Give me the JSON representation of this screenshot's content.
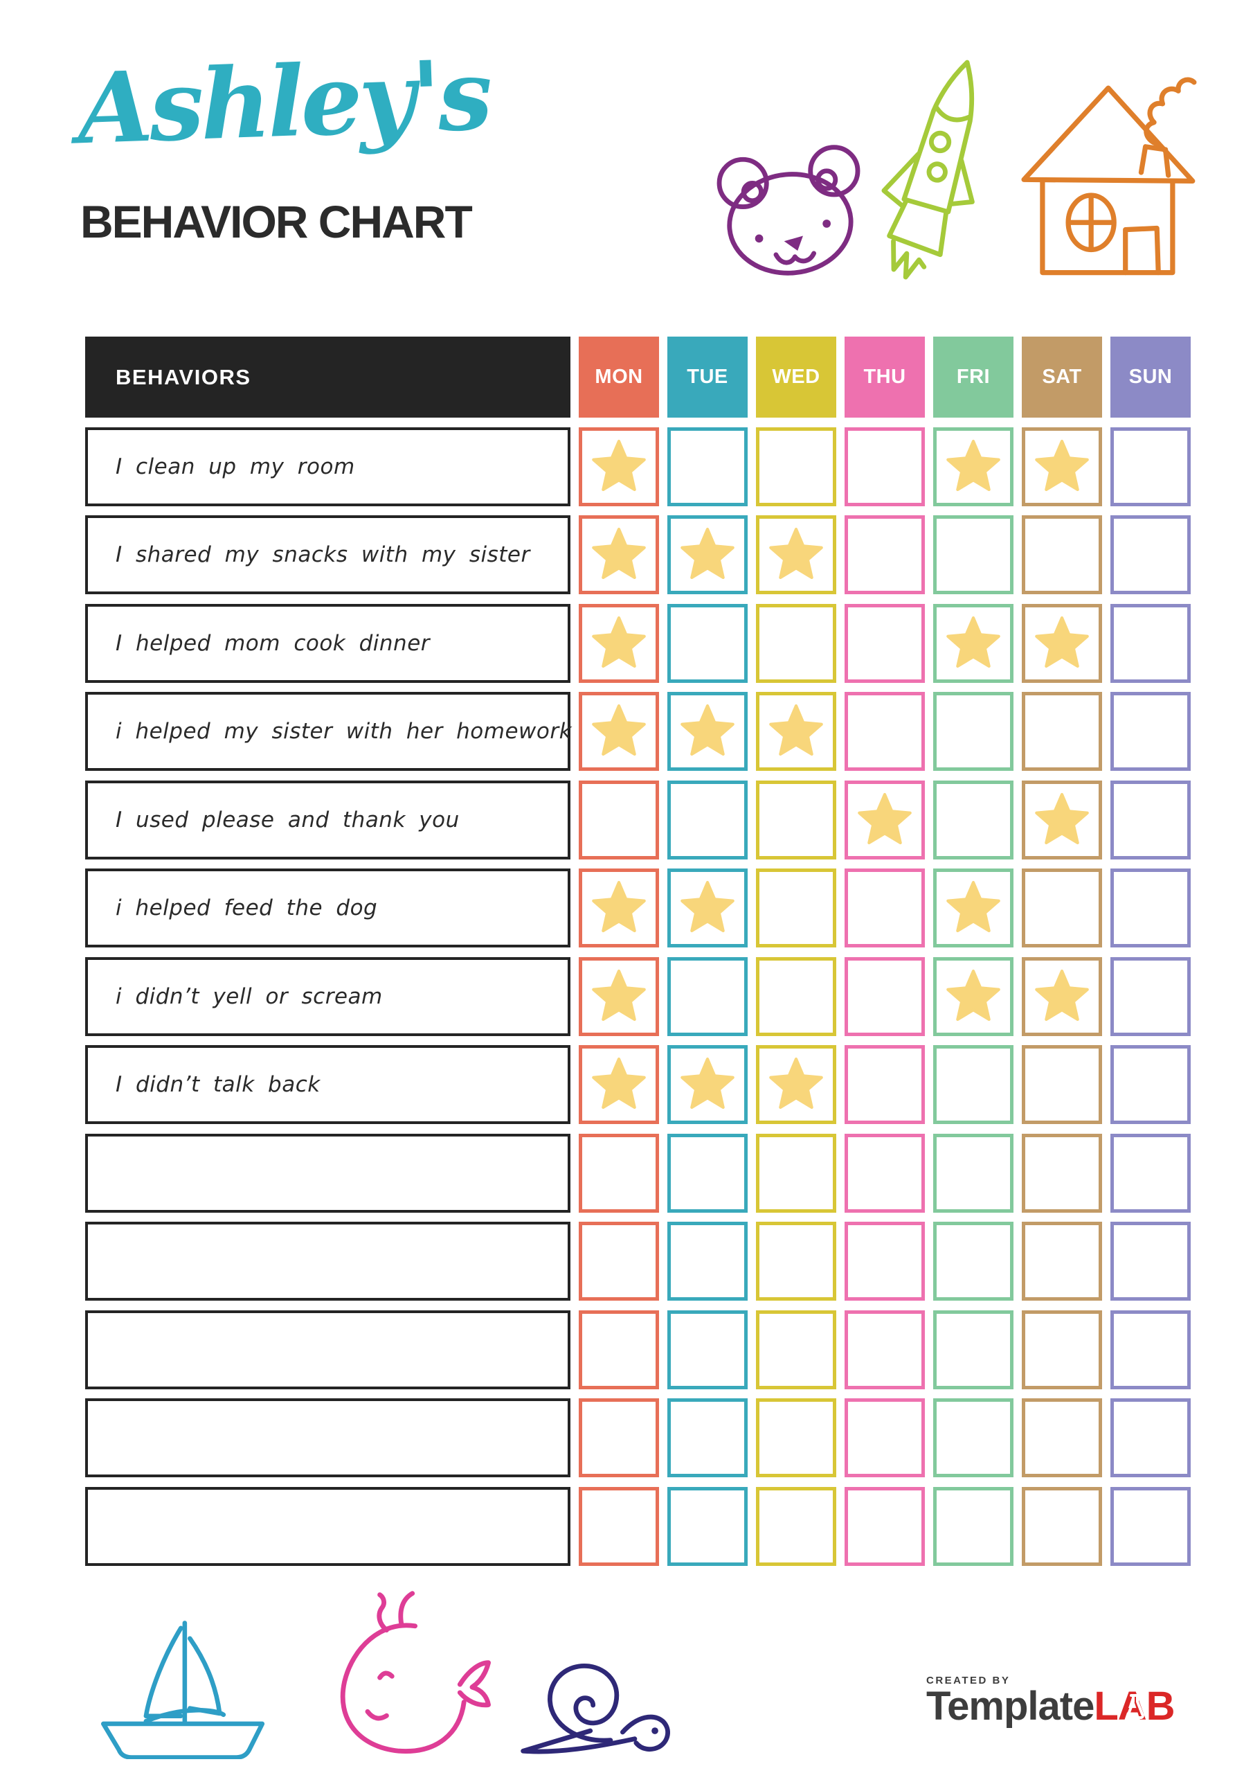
{
  "title": {
    "script": "Ashley's",
    "heading": "BEHAVIOR CHART",
    "script_color": "#2FAEC1",
    "heading_color": "#2b2b2b"
  },
  "table": {
    "behaviors_header": "BEHAVIORS",
    "header_bg": "#242424",
    "row_border_color": "#242424",
    "star_color": "#F8D67B",
    "days": [
      {
        "label": "MON",
        "color": "#E76F57"
      },
      {
        "label": "TUE",
        "color": "#39A9BB"
      },
      {
        "label": "WED",
        "color": "#D8C636"
      },
      {
        "label": "THU",
        "color": "#EE71AF"
      },
      {
        "label": "FRI",
        "color": "#82C99C"
      },
      {
        "label": "SAT",
        "color": "#C29B67"
      },
      {
        "label": "SUN",
        "color": "#8C8AC6"
      }
    ],
    "rows": [
      {
        "label": "I clean up my room",
        "stars": [
          "MON",
          "FRI",
          "SAT"
        ]
      },
      {
        "label": "I shared my snacks with my sister",
        "stars": [
          "MON",
          "TUE",
          "WED"
        ]
      },
      {
        "label": "I helped mom cook dinner",
        "stars": [
          "MON",
          "FRI",
          "SAT"
        ]
      },
      {
        "label": "i helped my sister with her homework",
        "stars": [
          "MON",
          "TUE",
          "WED"
        ]
      },
      {
        "label": "I used please and thank you",
        "stars": [
          "THU",
          "SAT"
        ]
      },
      {
        "label": "i helped feed the dog",
        "stars": [
          "MON",
          "TUE",
          "FRI"
        ]
      },
      {
        "label": "i didn’t yell or scream",
        "stars": [
          "MON",
          "FRI",
          "SAT"
        ]
      },
      {
        "label": "I didn’t talk back",
        "stars": [
          "MON",
          "TUE",
          "WED"
        ]
      },
      {
        "label": "",
        "stars": []
      },
      {
        "label": "",
        "stars": []
      },
      {
        "label": "",
        "stars": []
      },
      {
        "label": "",
        "stars": []
      },
      {
        "label": "",
        "stars": []
      }
    ]
  },
  "decorations": {
    "top_icons": [
      "bear-icon",
      "rocket-icon",
      "house-icon"
    ],
    "bottom_icons": [
      "sailboat-icon",
      "whale-icon",
      "snail-icon"
    ],
    "colors": {
      "bear": "#7E2C82",
      "rocket": "#A5CA3A",
      "house": "#DF7F2B",
      "sailboat": "#2E9EC6",
      "whale": "#DE3D96",
      "snail": "#2E2877"
    }
  },
  "footer": {
    "created_by": "CREATED BY",
    "brand_primary": "Template",
    "brand_accent": "LAB",
    "primary_color": "#3d3d3d",
    "accent_color": "#DB2727"
  }
}
